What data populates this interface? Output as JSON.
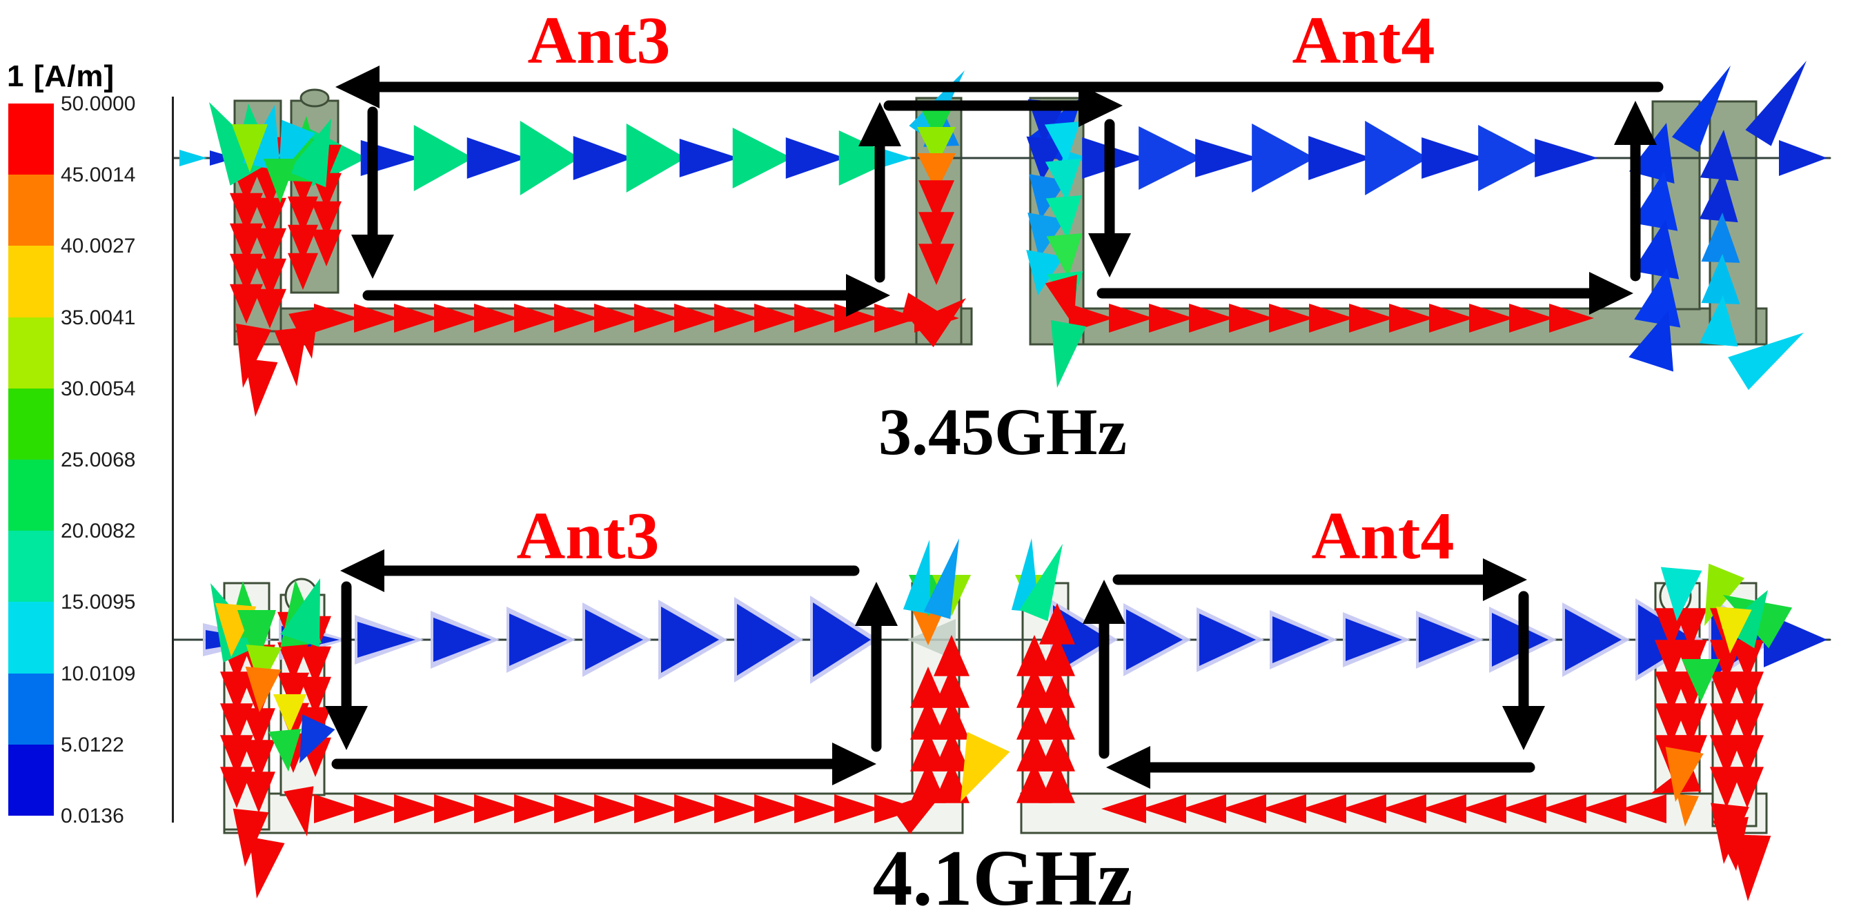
{
  "legend": {
    "title": "1 [A/m]",
    "ticks": [
      "50.0000",
      "45.0014",
      "40.0027",
      "35.0041",
      "30.0054",
      "25.0068",
      "20.0082",
      "15.0095",
      "10.0109",
      "5.0122",
      "0.0136"
    ],
    "band_colors": [
      "#FE0000",
      "#FF7C00",
      "#FFD300",
      "#A8EC00",
      "#2CDE00",
      "#00E14E",
      "#00E79E",
      "#00DEEE",
      "#0071EE",
      "#0009DC"
    ]
  },
  "top_panel": {
    "ant_left": "Ant3",
    "ant_right": "Ant4",
    "frequency": "3.45GHz"
  },
  "bottom_panel": {
    "ant_left": "Ant3",
    "ant_right": "Ant4",
    "frequency": "4.1GHz"
  },
  "colors": {
    "antenna_label": "#FF0000",
    "frequency_label": "#000000",
    "annotation_arrow": "#000000",
    "substrate_top": "#95A78B",
    "substrate_bottom": "#F1F4EE",
    "substrate_outline": "#3E4E38",
    "current_red": "#F40505",
    "current_blue": "#0A2AD8",
    "current_green": "#00DC82",
    "current_cyan": "#00CCEE",
    "ghost_cone": "#C7C9F2"
  }
}
